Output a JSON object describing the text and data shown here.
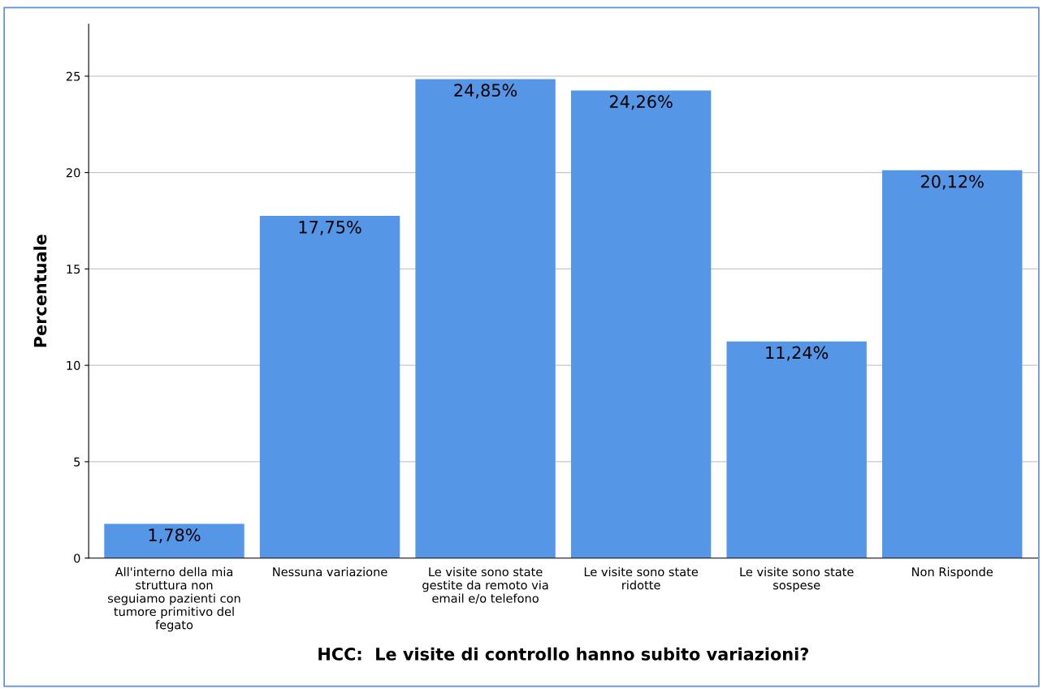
{
  "chart_data": {
    "type": "bar",
    "xlabel": "HCC:  Le visite di controllo hanno subito variazioni?",
    "ylabel": "Percentuale",
    "categories": [
      "All'interno della mia struttura non seguiamo pazienti con tumore primitivo del fegato",
      "Nessuna variazione",
      "Le visite sono state gestite da remoto via email e/o telefono",
      "Le visite sono state ridotte",
      "Le visite sono state sospese",
      "Non Risponde"
    ],
    "values": [
      1.78,
      17.75,
      24.85,
      24.26,
      11.24,
      20.12
    ],
    "value_labels": [
      "1,78%",
      "17,75%",
      "24,85%",
      "24,26%",
      "11,24%",
      "20,12%"
    ],
    "color": "#5596e6",
    "ylim": [
      0,
      27.7
    ],
    "yticks": [
      0,
      5,
      10,
      15,
      20,
      25
    ],
    "grid": "y"
  }
}
